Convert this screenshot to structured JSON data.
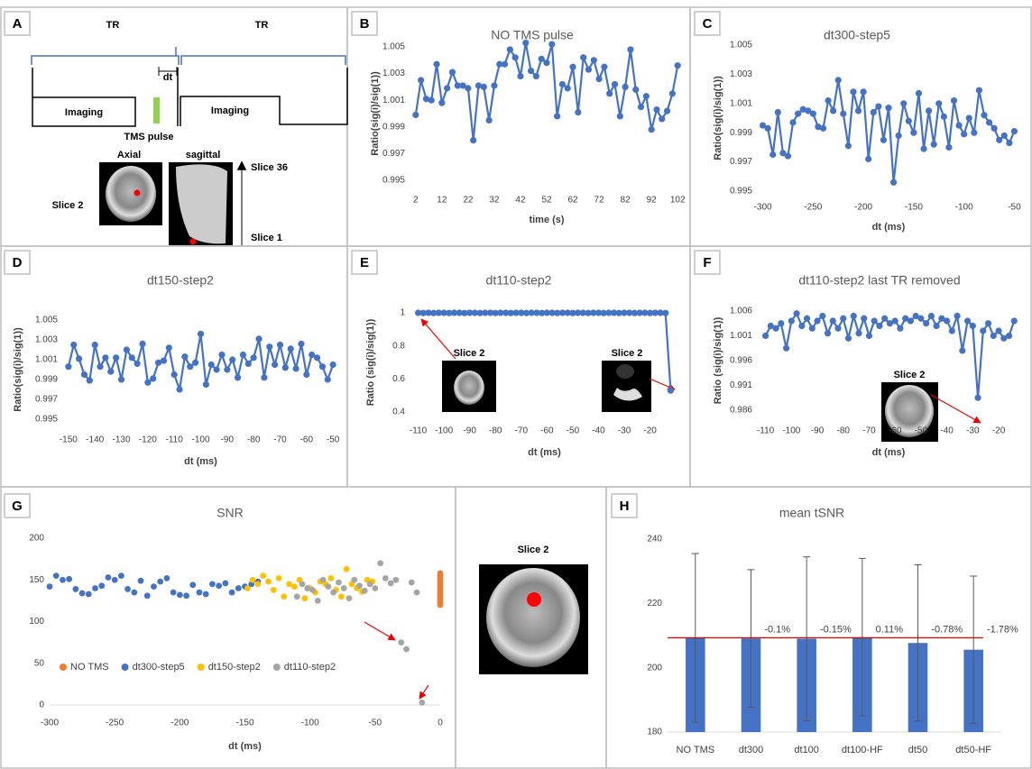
{
  "diagram": {
    "panel": "A",
    "tr_left": "TR",
    "tr_right": "TR",
    "dt": "dt",
    "imaging_left": "Imaging",
    "imaging_right": "Imaging",
    "tms": "TMS pulse",
    "axial": "Axial",
    "sagittal": "sagittal",
    "slice_top": "Slice 36",
    "slice_bottom": "Slice 1",
    "slice_axial": "Slice 2"
  },
  "slice_image": {
    "label": "Slice 2"
  },
  "chart_data": [
    {
      "panel": "B",
      "type": "line",
      "title": "NO TMS pulse",
      "xlabel": "time (s)",
      "ylabel": "Ratio(sig(i)/sig(1))",
      "color": "#4472c4",
      "x": [
        2,
        4,
        6,
        8,
        10,
        12,
        14,
        16,
        18,
        20,
        22,
        24,
        26,
        28,
        30,
        32,
        34,
        36,
        38,
        40,
        42,
        44,
        46,
        48,
        50,
        52,
        54,
        56,
        58,
        60,
        62,
        64,
        66,
        68,
        70,
        72,
        74,
        76,
        78,
        80,
        82,
        84,
        86,
        88,
        90,
        92,
        94,
        96,
        98,
        100,
        102
      ],
      "values": [
        0.9999,
        1.0025,
        1.0011,
        1.001,
        1.0037,
        1.0008,
        1.0019,
        1.0031,
        1.0021,
        1.0021,
        1.0019,
        0.998,
        1.0021,
        1.002,
        0.9995,
        1.0021,
        1.0037,
        1.0037,
        1.0048,
        1.0042,
        1.0028,
        1.0053,
        1.0032,
        1.0028,
        1.0041,
        1.0038,
        1.0052,
        0.9998,
        1.0022,
        1.0019,
        1.0035,
        1.0001,
        1.0042,
        1.0033,
        1.004,
        1.0026,
        1.0035,
        1.0015,
        1.0022,
        0.9998,
        1.002,
        1.0048,
        1.0018,
        1.0005,
        1.0013,
        0.9988,
        1.0003,
        0.9996,
        1.0002,
        1.0015,
        1.0036
      ],
      "xlim": [
        0,
        104
      ],
      "ylim": [
        0.995,
        1.005
      ],
      "xticks": [
        2,
        12,
        22,
        32,
        42,
        52,
        62,
        72,
        82,
        92,
        102
      ],
      "yticks": [
        0.995,
        0.997,
        0.999,
        1.001,
        1.003,
        1.005
      ]
    },
    {
      "panel": "C",
      "type": "line",
      "title": "dt300-step5",
      "xlabel": "dt (ms)",
      "ylabel": "Ratio(sig(i)/sig(1))",
      "color": "#4472c4",
      "x": [
        -300,
        -295,
        -290,
        -285,
        -280,
        -275,
        -270,
        -265,
        -260,
        -255,
        -250,
        -245,
        -240,
        -235,
        -230,
        -225,
        -220,
        -215,
        -210,
        -205,
        -200,
        -195,
        -190,
        -185,
        -180,
        -175,
        -170,
        -165,
        -160,
        -155,
        -150,
        -145,
        -140,
        -135,
        -130,
        -125,
        -120,
        -115,
        -110,
        -105,
        -100,
        -95,
        -90,
        -85,
        -80,
        -75,
        -70,
        -65,
        -60,
        -55,
        -50
      ],
      "values": [
        0.9995,
        0.9993,
        0.9975,
        1.0004,
        0.9976,
        0.9974,
        0.9997,
        1.0003,
        1.0006,
        1.0005,
        1.0003,
        0.9994,
        0.9993,
        1.0012,
        1.0005,
        1.0026,
        1.0003,
        0.9981,
        1.0018,
        1.0005,
        1.0018,
        0.9972,
        1.0004,
        1.0008,
        0.9985,
        1.0007,
        0.9956,
        0.9988,
        1.001,
        0.9998,
        0.999,
        1.0017,
        0.9979,
        1.0005,
        0.9982,
        1.001,
        1.0001,
        0.998,
        1.0012,
        0.9995,
        0.9989,
        1.0,
        0.999,
        1.0019,
        1.0002,
        0.9997,
        0.9993,
        0.9985,
        0.9988,
        0.9983,
        0.9991
      ],
      "xlim": [
        -305,
        -45
      ],
      "ylim": [
        0.995,
        1.005
      ],
      "xticks": [
        -300,
        -250,
        -200,
        -150,
        -100,
        -50
      ],
      "yticks": [
        0.995,
        0.997,
        0.999,
        1.001,
        1.003,
        1.005
      ]
    },
    {
      "panel": "D",
      "type": "line",
      "title": "dt150-step2",
      "xlabel": "dt (ms)",
      "ylabel": "Ratio(sig(i)/sig(1))",
      "color": "#4472c4",
      "x": [
        -150,
        -148,
        -146,
        -144,
        -142,
        -140,
        -138,
        -136,
        -134,
        -132,
        -130,
        -128,
        -126,
        -124,
        -122,
        -120,
        -118,
        -116,
        -114,
        -112,
        -110,
        -108,
        -106,
        -104,
        -102,
        -100,
        -98,
        -96,
        -94,
        -92,
        -90,
        -88,
        -86,
        -84,
        -82,
        -80,
        -78,
        -76,
        -74,
        -72,
        -70,
        -68,
        -66,
        -64,
        -62,
        -60,
        -58,
        -56,
        -54,
        -52,
        -50
      ],
      "values": [
        1.0003,
        1.0025,
        1.0011,
        0.9995,
        0.9989,
        1.0025,
        1.0003,
        1.0012,
        0.9998,
        1.0012,
        0.999,
        1.002,
        1.0012,
        1.0006,
        1.0026,
        0.9987,
        0.9991,
        1.0007,
        1.0009,
        1.0022,
        0.9995,
        0.998,
        1.0013,
        1.0003,
        1.0007,
        1.0036,
        0.9985,
        1.0005,
        1.0,
        1.0015,
        1.0,
        1.001,
        0.9992,
        1.0015,
        1.0006,
        1.0012,
        1.0031,
        0.9992,
        1.0023,
        1.0005,
        1.0025,
        1.0002,
        1.0021,
        1.0001,
        1.0026,
        0.9995,
        1.0015,
        1.0012,
        1.0003,
        0.999,
        1.0005
      ],
      "xlim": [
        -152,
        -48
      ],
      "ylim": [
        0.995,
        1.005
      ],
      "xticks": [
        -150,
        -140,
        -130,
        -120,
        -110,
        -100,
        -90,
        -80,
        -70,
        -60,
        -50
      ],
      "yticks": [
        0.995,
        0.997,
        0.999,
        1.001,
        1.003,
        1.005
      ]
    },
    {
      "panel": "E",
      "type": "line",
      "title": "dt110-step2",
      "xlabel": "dt (ms)",
      "ylabel": "Ratio (sig(i)/sig(1))",
      "color": "#4472c4",
      "annotations": [
        "Slice 2",
        "Slice 2"
      ],
      "x": [
        -110,
        -108,
        -106,
        -104,
        -102,
        -100,
        -98,
        -96,
        -94,
        -92,
        -90,
        -88,
        -86,
        -84,
        -82,
        -80,
        -78,
        -76,
        -74,
        -72,
        -70,
        -68,
        -66,
        -64,
        -62,
        -60,
        -58,
        -56,
        -54,
        -52,
        -50,
        -48,
        -46,
        -44,
        -42,
        -40,
        -38,
        -36,
        -34,
        -32,
        -30,
        -28,
        -26,
        -24,
        -22,
        -20,
        -18,
        -16,
        -14,
        -12
      ],
      "values": [
        1,
        0.999,
        1,
        0.999,
        1,
        1,
        0.999,
        1,
        1,
        0.999,
        1,
        1,
        0.999,
        1,
        1,
        0.999,
        1,
        1,
        0.999,
        1,
        1,
        0.999,
        1,
        1,
        0.999,
        1,
        1,
        0.999,
        1,
        1,
        0.999,
        1,
        1,
        0.999,
        1,
        1,
        0.999,
        1,
        1,
        0.999,
        1,
        1,
        0.999,
        1,
        1,
        0.999,
        1,
        1,
        0.999,
        0.53
      ],
      "xlim": [
        -113,
        -9
      ],
      "ylim": [
        0.4,
        1
      ],
      "xticks": [
        -110,
        -100,
        -90,
        -80,
        -70,
        -60,
        -50,
        -40,
        -30,
        -20
      ],
      "yticks": [
        0.4,
        0.6,
        0.8,
        1
      ]
    },
    {
      "panel": "F",
      "type": "line",
      "title": "dt110-step2 last TR removed",
      "xlabel": "dt (ms)",
      "ylabel": "Ratio (sig(i)/sig(1))",
      "color": "#4472c4",
      "annotations": [
        "Slice 2"
      ],
      "x": [
        -110,
        -108,
        -106,
        -104,
        -102,
        -100,
        -98,
        -96,
        -94,
        -92,
        -90,
        -88,
        -86,
        -84,
        -82,
        -80,
        -78,
        -76,
        -74,
        -72,
        -70,
        -68,
        -66,
        -64,
        -62,
        -60,
        -58,
        -56,
        -54,
        -52,
        -50,
        -48,
        -46,
        -44,
        -42,
        -40,
        -38,
        -36,
        -34,
        -32,
        -30,
        -28,
        -26,
        -24,
        -22,
        -20,
        -18,
        -16,
        -14
      ],
      "values": [
        1.001,
        1.003,
        1.0025,
        1.0035,
        0.9985,
        1.004,
        1.0055,
        1.003,
        1.0045,
        1.0025,
        1.004,
        1.005,
        1.0015,
        1.004,
        1.0025,
        1.0045,
        1.0005,
        1.005,
        1.0015,
        1.0045,
        1.001,
        1.004,
        1.003,
        1.0045,
        1.0035,
        1.004,
        1.0025,
        1.0045,
        1.004,
        1.005,
        1.0045,
        1.0035,
        1.005,
        1.003,
        1.0045,
        1.004,
        1.002,
        1.005,
        0.998,
        1.004,
        1.003,
        0.9885,
        1.002,
        1.0035,
        1.001,
        1.002,
        1.0005,
        1.001,
        1.004
      ],
      "xlim": [
        -113,
        -12
      ],
      "ylim": [
        0.986,
        1.006
      ],
      "xticks": [
        -110,
        -100,
        -90,
        -80,
        -70,
        -60,
        -50,
        -40,
        -30,
        -20
      ],
      "yticks": [
        0.986,
        0.991,
        0.996,
        1.001,
        1.006
      ]
    },
    {
      "panel": "G",
      "type": "scatter",
      "title": "SNR",
      "xlabel": "dt (ms)",
      "legend": "bottom",
      "series": [
        {
          "name": "NO TMS",
          "color": "#ed7d31",
          "x": [
            0,
            0,
            0,
            0,
            0,
            0,
            0,
            0,
            0,
            0,
            0,
            0,
            0,
            0,
            0,
            0
          ],
          "values": [
            120,
            122,
            125,
            127,
            130,
            132,
            135,
            137,
            140,
            142,
            145,
            147,
            150,
            152,
            155,
            158
          ]
        },
        {
          "name": "dt300-step5",
          "color": "#4472c4",
          "x": [
            -300,
            -295,
            -290,
            -285,
            -280,
            -275,
            -270,
            -265,
            -260,
            -255,
            -250,
            -245,
            -240,
            -235,
            -230,
            -225,
            -220,
            -215,
            -210,
            -205,
            -200,
            -195,
            -190,
            -185,
            -180,
            -175,
            -170,
            -165,
            -160,
            -155,
            -150,
            -145,
            -140
          ],
          "values": [
            142,
            155,
            150,
            151,
            139,
            134,
            133,
            140,
            143,
            153,
            150,
            155,
            139,
            135,
            149,
            131,
            142,
            148,
            152,
            135,
            132,
            131,
            144,
            135,
            133,
            145,
            143,
            146,
            135,
            140,
            142,
            145,
            148
          ]
        },
        {
          "name": "dt150-step2",
          "color": "#ffc000",
          "x": [
            -148,
            -144,
            -140,
            -136,
            -132,
            -128,
            -124,
            -120,
            -116,
            -112,
            -108,
            -104,
            -100,
            -96,
            -92,
            -88,
            -84,
            -80,
            -76,
            -72,
            -68,
            -64,
            -60,
            -56,
            -52
          ],
          "values": [
            140,
            150,
            145,
            155,
            148,
            138,
            152,
            130,
            145,
            142,
            150,
            128,
            140,
            135,
            148,
            145,
            152,
            138,
            130,
            163,
            145,
            140,
            136,
            150,
            148
          ]
        },
        {
          "name": "dt110-step2",
          "color": "#a5a5a5",
          "x": [
            -110,
            -106,
            -102,
            -98,
            -94,
            -90,
            -86,
            -82,
            -78,
            -74,
            -70,
            -66,
            -62,
            -58,
            -54,
            -50,
            -46,
            -42,
            -38,
            -34,
            -30,
            -26,
            -22,
            -18,
            -14
          ],
          "values": [
            130,
            145,
            140,
            138,
            125,
            150,
            142,
            135,
            147,
            140,
            128,
            150,
            143,
            137,
            145,
            140,
            170,
            152,
            146,
            150,
            75,
            67,
            147,
            135,
            3
          ]
        }
      ],
      "xlim": [
        -300,
        0
      ],
      "ylim": [
        0,
        200
      ],
      "xticks": [
        -300,
        -250,
        -200,
        -150,
        -100,
        -50,
        0
      ],
      "yticks": [
        0,
        50,
        100,
        150,
        200
      ]
    },
    {
      "panel": "H",
      "type": "bar",
      "title": "mean tSNR",
      "color": "#4472c4",
      "error_color": "#595959",
      "reference_line": 209.3,
      "reference_color": "#e00000",
      "categories": [
        "NO TMS",
        "dt300",
        "dt100",
        "dt100-HF",
        "dt50",
        "dt50-HF"
      ],
      "values": [
        209.3,
        209.1,
        209.0,
        209.5,
        207.7,
        205.6
      ],
      "errors": [
        26.2,
        21.4,
        25.5,
        24.5,
        24.3,
        22.9
      ],
      "notes": [
        null,
        "-0.1%",
        "-0.15%",
        "0.11%",
        "-0.78%",
        "-1.78%"
      ],
      "ylim": [
        180,
        240
      ],
      "yticks": [
        180,
        200,
        220,
        240
      ]
    }
  ]
}
